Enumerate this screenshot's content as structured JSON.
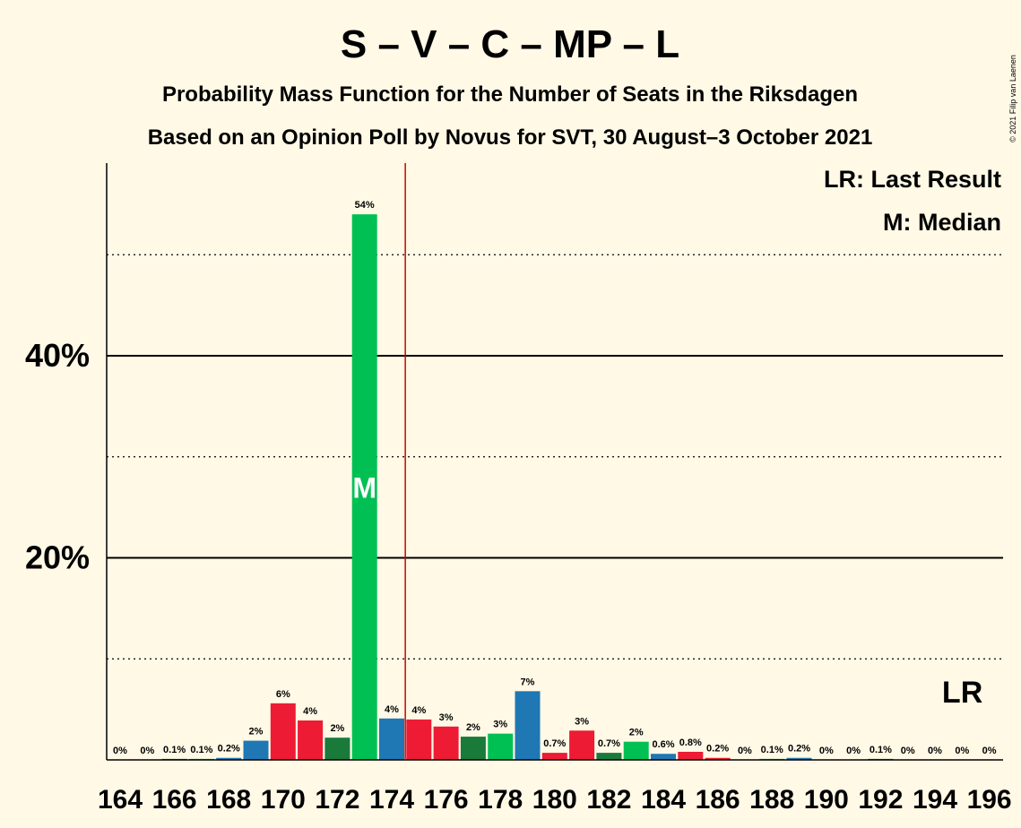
{
  "chart_data": {
    "type": "bar",
    "title": "S – V – C – MP – L",
    "subtitle_lines": [
      "Probability Mass Function for the Number of Seats in the Riksdagen",
      "Based on an Opinion Poll by Novus for SVT, 30 August–3 October 2021"
    ],
    "copyright": "© 2021 Filip van Laenen",
    "legend": [
      "LR: Last Result",
      "M: Median"
    ],
    "categories": [
      164,
      165,
      166,
      167,
      168,
      169,
      170,
      171,
      172,
      173,
      174,
      175,
      176,
      177,
      178,
      179,
      180,
      181,
      182,
      183,
      184,
      185,
      186,
      187,
      188,
      189,
      190,
      191,
      192,
      193,
      194,
      195,
      196
    ],
    "values": [
      0,
      0,
      0.1,
      0.1,
      0.2,
      1.9,
      5.6,
      3.9,
      2.2,
      54.0,
      4.1,
      4.0,
      3.3,
      2.3,
      2.6,
      6.8,
      0.7,
      2.9,
      0.7,
      1.8,
      0.6,
      0.8,
      0.2,
      0,
      0.1,
      0.2,
      0,
      0,
      0.1,
      0,
      0,
      0,
      0
    ],
    "bar_labels": [
      "0%",
      "0%",
      "0.1%",
      "0.1%",
      "0.2%",
      "2%",
      "6%",
      "4%",
      "2%",
      "54%",
      "4%",
      "4%",
      "3%",
      "2%",
      "3%",
      "7%",
      "0.7%",
      "3%",
      "0.7%",
      "2%",
      "0.6%",
      "0.8%",
      "0.2%",
      "0%",
      "0.1%",
      "0.2%",
      "0%",
      "0%",
      "0.1%",
      "0%",
      "0%",
      "0%",
      "0%"
    ],
    "bar_colors": [
      "#1f77b4",
      "#ed1b34",
      "#1a7a3a",
      "#00c054",
      "#1f77b4",
      "#1f77b4",
      "#ed1b34",
      "#ed1b34",
      "#1a7a3a",
      "#00c054",
      "#1f77b4",
      "#ed1b34",
      "#ed1b34",
      "#1a7a3a",
      "#00c054",
      "#1f77b4",
      "#ed1b34",
      "#ed1b34",
      "#1a7a3a",
      "#00c054",
      "#1f77b4",
      "#ed1b34",
      "#ed1b34",
      "#1a7a3a",
      "#00c054",
      "#1f77b4",
      "#ed1b34",
      "#ed1b34",
      "#1a7a3a",
      "#00c054",
      "#1f77b4",
      "#ed1b34",
      "#ed1b34"
    ],
    "x_tick_labels": [
      "164",
      "166",
      "168",
      "170",
      "172",
      "174",
      "176",
      "178",
      "180",
      "182",
      "184",
      "186",
      "188",
      "190",
      "192",
      "194",
      "196"
    ],
    "y_tick_labels": [
      "20%",
      "40%"
    ],
    "ylim": [
      0,
      59
    ],
    "grid": "major solid at 20% and 40%, dotted at 10%, 30%, 50%",
    "median": 173,
    "median_label": "M",
    "majority_line": 175,
    "last_result": 196,
    "last_result_label": "LR",
    "colors": {
      "background": "#fff9e6",
      "majority_line": "#cc0000"
    }
  }
}
